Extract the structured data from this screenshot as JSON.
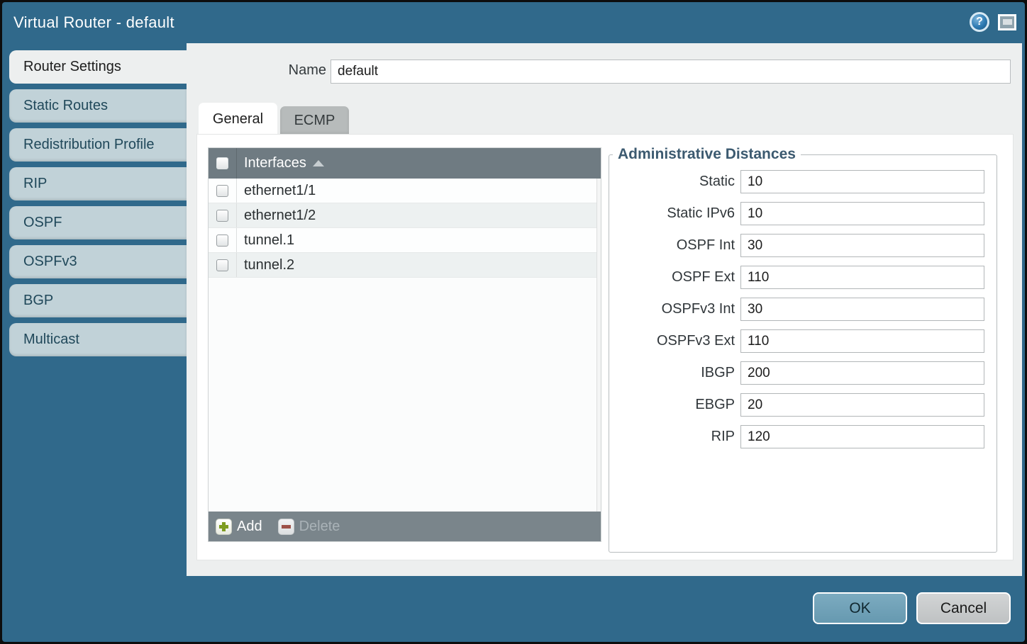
{
  "title_bar": {
    "title": "Virtual Router - default",
    "help_glyph": "?"
  },
  "sidebar": {
    "items": [
      {
        "label": "Router Settings",
        "active": true
      },
      {
        "label": "Static Routes",
        "active": false
      },
      {
        "label": "Redistribution Profile",
        "active": false
      },
      {
        "label": "RIP",
        "active": false
      },
      {
        "label": "OSPF",
        "active": false
      },
      {
        "label": "OSPFv3",
        "active": false
      },
      {
        "label": "BGP",
        "active": false
      },
      {
        "label": "Multicast",
        "active": false
      }
    ]
  },
  "form": {
    "name_label": "Name",
    "name_value": "default"
  },
  "tabs": [
    {
      "label": "General",
      "active": true
    },
    {
      "label": "ECMP",
      "active": false
    }
  ],
  "interfaces_table": {
    "header": "Interfaces",
    "rows": [
      "ethernet1/1",
      "ethernet1/2",
      "tunnel.1",
      "tunnel.2"
    ],
    "add_label": "Add",
    "delete_label": "Delete"
  },
  "admin_distances": {
    "legend": "Administrative Distances",
    "fields": [
      {
        "label": "Static",
        "value": "10"
      },
      {
        "label": "Static IPv6",
        "value": "10"
      },
      {
        "label": "OSPF Int",
        "value": "30"
      },
      {
        "label": "OSPF Ext",
        "value": "110"
      },
      {
        "label": "OSPFv3 Int",
        "value": "30"
      },
      {
        "label": "OSPFv3 Ext",
        "value": "110"
      },
      {
        "label": "IBGP",
        "value": "200"
      },
      {
        "label": "EBGP",
        "value": "20"
      },
      {
        "label": "RIP",
        "value": "120"
      }
    ]
  },
  "footer": {
    "ok_label": "OK",
    "cancel_label": "Cancel"
  },
  "colors": {
    "teal_background": "#30698b",
    "table_header": "#6f7b82",
    "ok_button": "#6fa3ba",
    "add_icon_green": "#7e9c21",
    "delete_icon_red": "#9d5148"
  }
}
